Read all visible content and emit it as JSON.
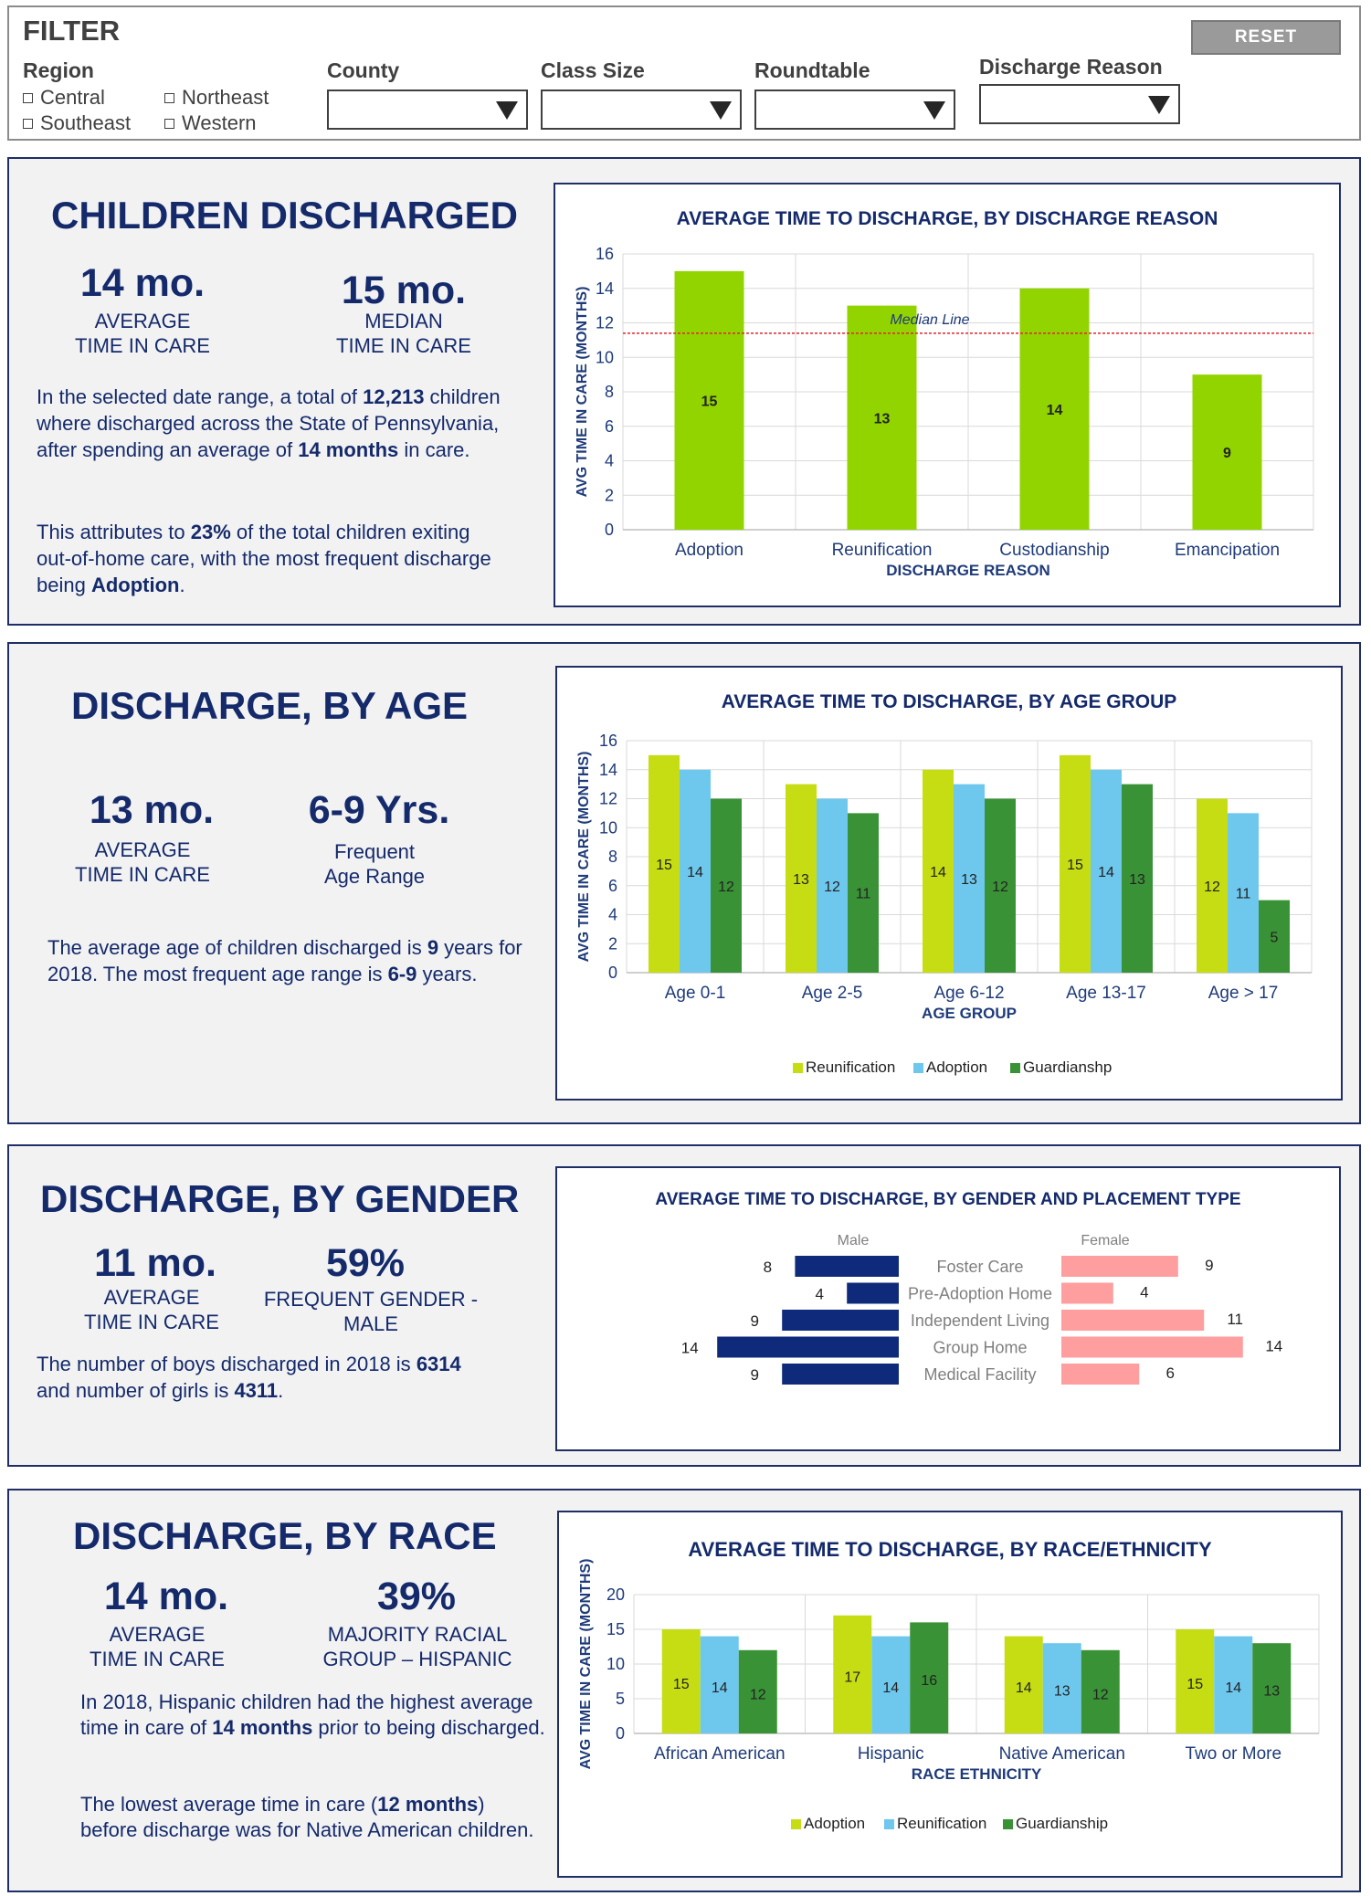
{
  "filter": {
    "title": "FILTER",
    "region_label": "Region",
    "regions": [
      "Central",
      "Northeast",
      "Southeast",
      "Western"
    ],
    "county_label": "County",
    "class_size_label": "Class Size",
    "roundtable_label": "Roundtable",
    "discharge_reason_label": "Discharge Reason",
    "reset_label": "RESET"
  },
  "discharged": {
    "title": "CHILDREN DISCHARGED",
    "kpi1_value": "14 mo.",
    "kpi1_label_l1": "AVERAGE",
    "kpi1_label_l2": "TIME IN CARE",
    "kpi2_value": "15 mo.",
    "kpi2_label_l1": "MEDIAN",
    "kpi2_label_l2": "TIME IN CARE",
    "p1_a": "In the selected date range, a total of ",
    "p1_b": "12,213",
    "p1_c": " children where discharged across the State of Pennsylvania, after spending an average of ",
    "p1_d": "14 months",
    "p1_e": " in care.",
    "p2_a": "This attributes to ",
    "p2_b": "23%",
    "p2_c": " of the total children exiting out-of-home care, with the most frequent discharge being ",
    "p2_d": "Adoption",
    "p2_e": "."
  },
  "age": {
    "title": "DISCHARGE, BY AGE",
    "kpi1_value": "13 mo.",
    "kpi1_label_l1": "AVERAGE",
    "kpi1_label_l2": "TIME IN CARE",
    "kpi2_value": "6-9 Yrs.",
    "kpi2_label_l1": "Frequent",
    "kpi2_label_l2": "Age Range",
    "p1_a": "The average age of children discharged is ",
    "p1_b": "9",
    "p1_c": " years for 2018. The most frequent age range is ",
    "p1_d": "6-9",
    "p1_e": " years."
  },
  "gender": {
    "title": "DISCHARGE, BY GENDER",
    "kpi1_value": "11 mo.",
    "kpi1_label_l1": "AVERAGE",
    "kpi1_label_l2": "TIME IN CARE",
    "kpi2_value": "59%",
    "kpi2_label_l1": "FREQUENT GENDER -",
    "kpi2_label_l2": "MALE",
    "p1_a": "The number of boys discharged in 2018 is ",
    "p1_b": "6314",
    "p1_c": " and number of girls is ",
    "p1_d": "4311",
    "p1_e": "."
  },
  "race": {
    "title": "DISCHARGE, BY RACE",
    "kpi1_value": "14 mo.",
    "kpi1_label_l1": "AVERAGE",
    "kpi1_label_l2": "TIME IN CARE",
    "kpi2_value": "39%",
    "kpi2_label_l1": "MAJORITY RACIAL",
    "kpi2_label_l2": "GROUP – HISPANIC",
    "p1_a": "In 2018, Hispanic children had the highest average time in care of ",
    "p1_b": "14 months",
    "p1_c": " prior to being discharged.",
    "p2_a": "The lowest average time in care (",
    "p2_b": "12 months",
    "p2_c": ") before discharge was for Native American children."
  },
  "colors": {
    "navy": "#142a6b",
    "green_bright": "#92d400",
    "lime": "#c5dd12",
    "sky": "#6ec8ee",
    "dark_green": "#3a9236",
    "male": "#0f2a7a",
    "female": "#ff9e9e",
    "median_line": "#e0262c"
  },
  "chart_data": [
    {
      "id": "reason",
      "type": "bar",
      "title": "AVERAGE TIME TO DISCHARGE, BY DISCHARGE REASON",
      "xlabel": "DISCHARGE REASON",
      "ylabel": "AVG TIME IN CARE (MONTHS)",
      "categories": [
        "Adoption",
        "Reunification",
        "Custodianship",
        "Emancipation"
      ],
      "values": [
        15,
        13,
        14,
        9
      ],
      "ylim": [
        0,
        16
      ],
      "yticks": [
        0,
        2,
        4,
        6,
        8,
        10,
        12,
        14,
        16
      ],
      "reference_line": {
        "label": "Median Line",
        "value": 11.4
      },
      "grid": true
    },
    {
      "id": "age",
      "type": "bar",
      "title": "AVERAGE TIME TO DISCHARGE, BY AGE GROUP",
      "xlabel": "AGE GROUP",
      "ylabel": "AVG TIME IN CARE (MONTHS)",
      "categories": [
        "Age 0-1",
        "Age 2-5",
        "Age 6-12",
        "Age 13-17",
        "Age > 17"
      ],
      "series": [
        {
          "name": "Reunification",
          "values": [
            15,
            13,
            14,
            15,
            12
          ]
        },
        {
          "name": "Adoption",
          "values": [
            14,
            12,
            13,
            14,
            11
          ]
        },
        {
          "name": "Guardianshp",
          "values": [
            12,
            11,
            12,
            13,
            5
          ]
        }
      ],
      "ylim": [
        0,
        16
      ],
      "yticks": [
        0,
        2,
        4,
        6,
        8,
        10,
        12,
        14,
        16
      ],
      "legend": "bottom",
      "grid": true
    },
    {
      "id": "gender",
      "type": "bar",
      "orientation": "horizontal-butterfly",
      "title": "AVERAGE TIME TO DISCHARGE, BY GENDER AND PLACEMENT TYPE",
      "categories": [
        "Foster Care",
        "Pre-Adoption Home",
        "Independent Living",
        "Group Home",
        "Medical Facility"
      ],
      "series": [
        {
          "name": "Male",
          "values": [
            8,
            4,
            9,
            14,
            9
          ]
        },
        {
          "name": "Female",
          "values": [
            9,
            4,
            11,
            14,
            6
          ]
        }
      ],
      "grid": false
    },
    {
      "id": "race",
      "type": "bar",
      "title": "AVERAGE TIME TO DISCHARGE, BY RACE/ETHNICITY",
      "xlabel": "RACE ETHNICITY",
      "ylabel": "AVG TIME IN CARE (MONTHS)",
      "categories": [
        "African American",
        "Hispanic",
        "Native American",
        "Two or More"
      ],
      "series": [
        {
          "name": "Adoption",
          "values": [
            15,
            17,
            14,
            15
          ]
        },
        {
          "name": "Reunification",
          "values": [
            14,
            14,
            13,
            14
          ]
        },
        {
          "name": "Guardianship",
          "values": [
            12,
            16,
            12,
            13
          ]
        }
      ],
      "ylim": [
        0,
        20
      ],
      "yticks": [
        0,
        5,
        10,
        15,
        20
      ],
      "legend": "bottom",
      "grid": true
    }
  ]
}
